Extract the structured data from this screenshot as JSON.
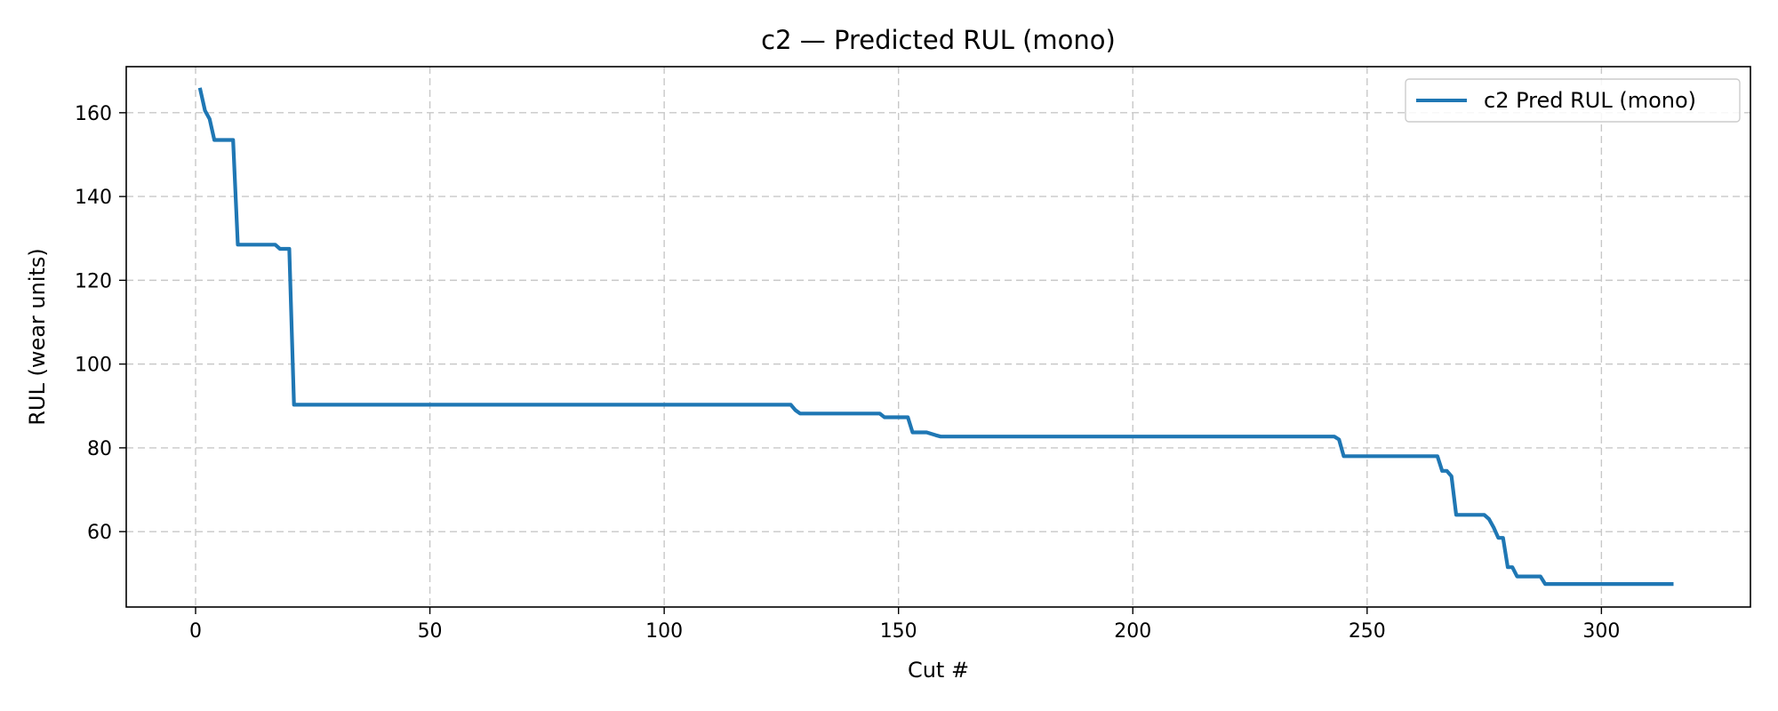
{
  "chart_data": {
    "type": "line",
    "title": "c2 — Predicted RUL (mono)",
    "xlabel": "Cut #",
    "ylabel": "RUL (wear units)",
    "xlim": [
      -14.8,
      331.8
    ],
    "ylim": [
      42,
      171
    ],
    "xticks": [
      0,
      50,
      100,
      150,
      200,
      250,
      300
    ],
    "yticks": [
      60,
      80,
      100,
      120,
      140,
      160
    ],
    "grid": true,
    "legend_position": "top-right",
    "series": [
      {
        "name": "c2 Pred RUL (mono)",
        "color": "#1f77b4",
        "x": [
          1,
          2,
          3,
          4,
          5,
          6,
          7,
          8,
          9,
          10,
          12,
          15,
          17,
          18,
          19,
          20,
          21,
          22,
          30,
          50,
          80,
          100,
          127,
          128,
          129,
          130,
          131,
          140,
          146,
          147,
          150,
          152,
          153,
          154,
          156,
          158,
          159,
          160,
          180,
          200,
          240,
          243,
          244,
          245,
          250,
          260,
          264,
          265,
          266,
          267,
          268,
          269,
          270,
          273,
          275,
          276,
          277,
          278,
          279,
          280,
          281,
          282,
          285,
          287,
          288,
          290,
          300,
          310,
          315
        ],
        "y": [
          165.5,
          160.5,
          158.5,
          153.5,
          153.5,
          153.5,
          153.5,
          153.5,
          128.5,
          128.5,
          128.5,
          128.5,
          128.5,
          127.5,
          127.5,
          127.5,
          90.3,
          90.3,
          90.3,
          90.3,
          90.3,
          90.3,
          90.3,
          89,
          88.2,
          88.2,
          88.2,
          88.2,
          88.2,
          87.3,
          87.3,
          87.3,
          83.7,
          83.7,
          83.7,
          83,
          82.7,
          82.7,
          82.7,
          82.7,
          82.7,
          82.7,
          82,
          78,
          78,
          78,
          78,
          78,
          74.5,
          74.5,
          73.2,
          64,
          64,
          64,
          64,
          63,
          61,
          58.5,
          58.5,
          51.5,
          51.5,
          49.3,
          49.3,
          49.3,
          47.5,
          47.5,
          47.5,
          47.5,
          47.5
        ]
      }
    ]
  }
}
